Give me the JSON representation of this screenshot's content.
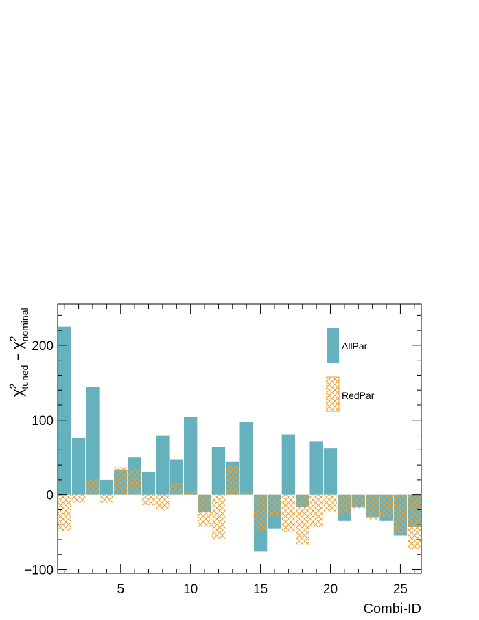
{
  "chart_data": {
    "type": "bar",
    "xlabel": "Combi-ID",
    "ylabel_main": "χ",
    "ylabel_sup1": "2",
    "ylabel_sub1": "tuned",
    "ylabel_minus": "−",
    "ylabel_sup2": "2",
    "ylabel_sub2": "nominal",
    "xlim": [
      0.5,
      26.5
    ],
    "ylim": [
      -105,
      255
    ],
    "x_ticks": [
      5,
      10,
      15,
      20,
      25
    ],
    "x_tick_labels": [
      "5",
      "10",
      "15",
      "20",
      "25"
    ],
    "y_ticks": [
      -100,
      0,
      100,
      200
    ],
    "y_tick_labels": [
      "−100",
      "0",
      "100",
      "200"
    ],
    "legend_position": "top-right",
    "categories": [
      1,
      2,
      3,
      4,
      5,
      6,
      7,
      8,
      9,
      10,
      11,
      12,
      13,
      14,
      15,
      16,
      17,
      18,
      19,
      20,
      21,
      22,
      23,
      24,
      25,
      26
    ],
    "series": [
      {
        "name": "AllPar",
        "color": "#65b1bd",
        "style": "solid",
        "values": [
          225,
          76,
          144,
          20,
          34,
          50,
          31,
          79,
          47,
          104,
          -23,
          64,
          44,
          97,
          -76,
          -45,
          81,
          -16,
          71,
          62,
          -35,
          -17,
          -30,
          -35,
          -54,
          -43
        ]
      },
      {
        "name": "RedPar",
        "color": "#f0a033",
        "style": "hatch",
        "values": [
          -49,
          -10,
          20,
          -10,
          37,
          35,
          -14,
          -20,
          15,
          5,
          -42,
          -59,
          40,
          3,
          -48,
          -28,
          -50,
          -67,
          -43,
          -22,
          -28,
          -18,
          -33,
          -30,
          -52,
          -72
        ]
      }
    ]
  }
}
